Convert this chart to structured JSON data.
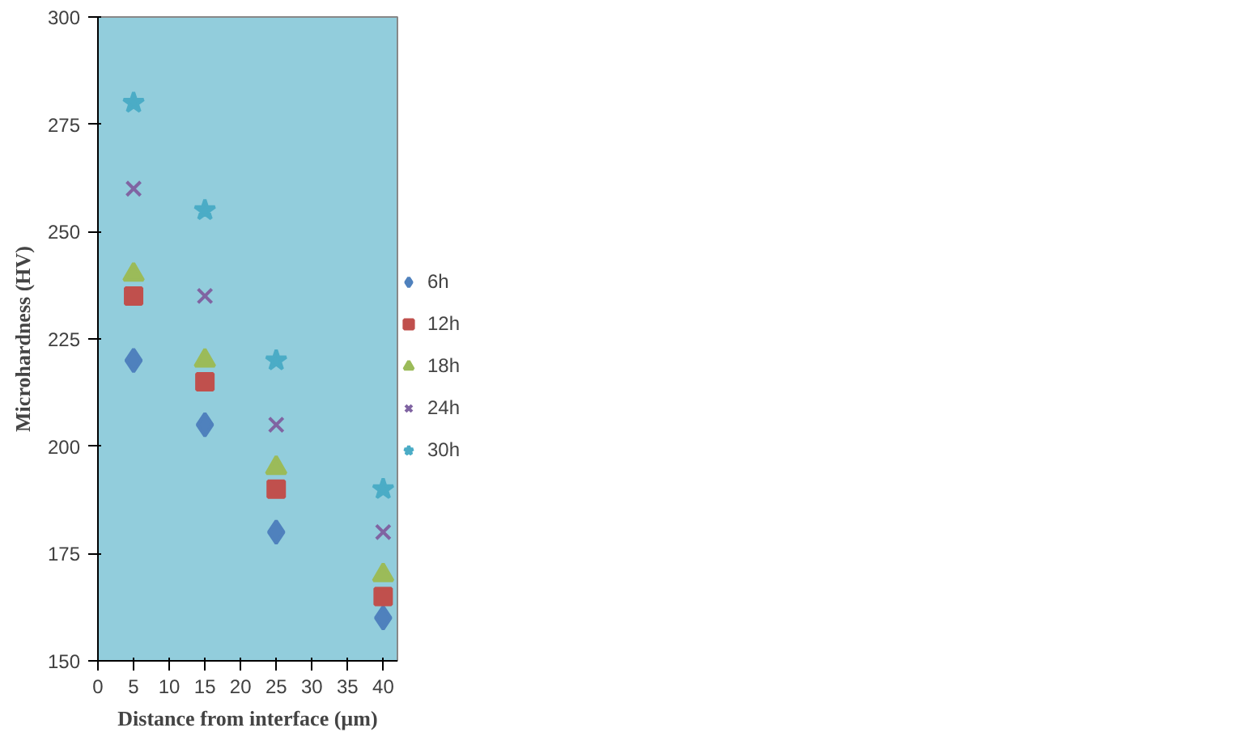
{
  "chart_data": {
    "type": "scatter",
    "xlabel": "Distance from interface (µm)",
    "ylabel": "Microhardness (HV)",
    "x": [
      5,
      15,
      25,
      40
    ],
    "xlim": [
      0,
      42
    ],
    "xticks": [
      0,
      5,
      10,
      15,
      20,
      25,
      30,
      35,
      40
    ],
    "ylim": [
      150,
      300
    ],
    "yticks": [
      150,
      175,
      200,
      225,
      250,
      275,
      300
    ],
    "grid": false,
    "legend": "right",
    "series": [
      {
        "name": "6h",
        "color": "#4f81bd",
        "marker": "diamond",
        "values": [
          220,
          205,
          180,
          160
        ]
      },
      {
        "name": "12h",
        "color": "#c0504d",
        "marker": "square",
        "values": [
          235,
          215,
          190,
          165
        ]
      },
      {
        "name": "18h",
        "color": "#9bbb59",
        "marker": "triangle",
        "values": [
          240,
          220,
          195,
          170
        ]
      },
      {
        "name": "24h",
        "color": "#8064a2",
        "marker": "cross",
        "values": [
          260,
          235,
          205,
          180
        ]
      },
      {
        "name": "30h",
        "color": "#4bacc6",
        "marker": "star",
        "values": [
          280,
          255,
          220,
          190
        ]
      }
    ]
  }
}
